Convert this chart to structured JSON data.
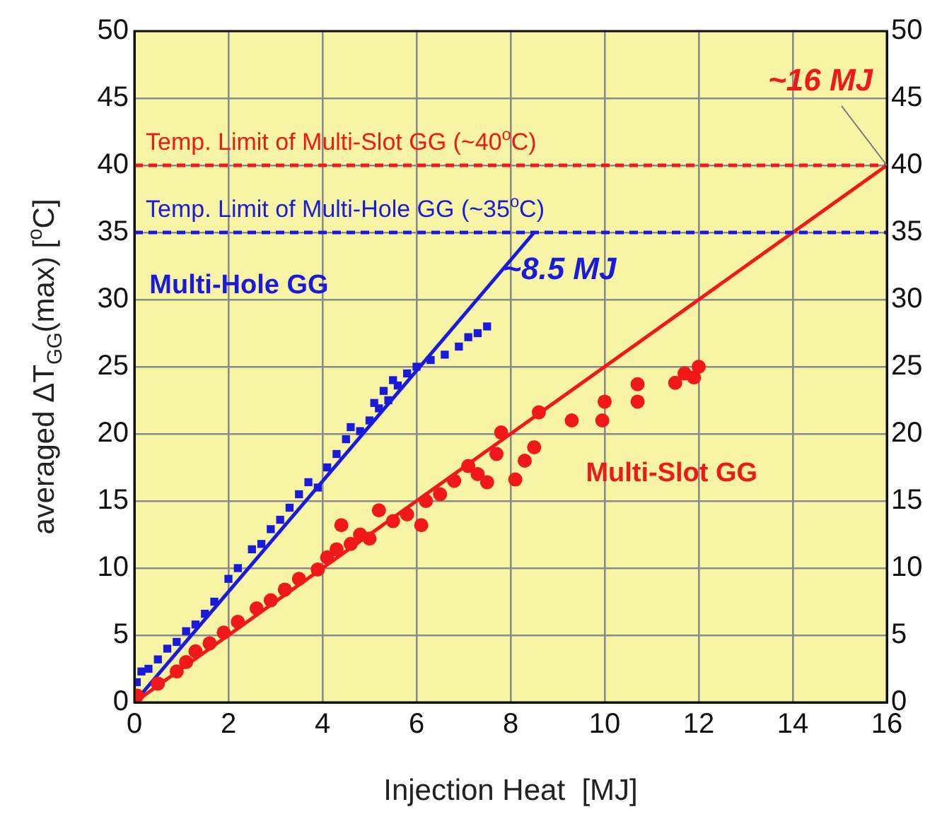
{
  "chart_data": {
    "type": "scatter",
    "xlabel": "Injection Heat  [MJ]",
    "ylabel": "averaged ΔT$_{GG}$(max) [$^{o}$C]",
    "xlim": [
      0,
      16
    ],
    "xticks": [
      0,
      2,
      4,
      6,
      8,
      10,
      12,
      14,
      16
    ],
    "ylim": [
      0,
      50
    ],
    "yticks": [
      0,
      5,
      10,
      15,
      20,
      25,
      30,
      35,
      40,
      45,
      50
    ],
    "y2lim": [
      0,
      50
    ],
    "y2ticks": [
      0,
      5,
      10,
      15,
      20,
      25,
      30,
      35,
      40,
      45,
      50
    ],
    "grid": true,
    "series": [
      {
        "name": "Multi-Hole GG",
        "color": "#1a1adc",
        "marker": "square",
        "x": [
          0.05,
          0.15,
          0.3,
          0.5,
          0.7,
          0.9,
          1.1,
          1.3,
          1.5,
          1.7,
          2.0,
          2.2,
          2.5,
          2.7,
          2.9,
          3.1,
          3.3,
          3.5,
          3.7,
          3.9,
          4.1,
          4.3,
          4.5,
          4.6,
          4.8,
          5.0,
          5.1,
          5.2,
          5.3,
          5.4,
          5.5,
          5.6,
          5.8,
          6.0,
          6.3,
          6.6,
          6.9,
          7.1,
          7.3,
          7.5
        ],
        "values": [
          1.5,
          2.3,
          2.5,
          3.2,
          4.0,
          4.5,
          5.3,
          5.8,
          6.6,
          7.5,
          9.2,
          10.0,
          11.4,
          11.8,
          12.9,
          13.6,
          14.5,
          15.5,
          16.4,
          16.0,
          17.5,
          18.5,
          19.6,
          20.5,
          20.2,
          21.0,
          22.3,
          21.9,
          23.2,
          22.5,
          24.0,
          23.6,
          24.5,
          25.0,
          25.5,
          25.9,
          26.5,
          27.2,
          27.5,
          28.0
        ]
      },
      {
        "name": "Multi-Slot GG",
        "color": "#f01818",
        "marker": "circle",
        "x": [
          0.06,
          0.5,
          0.9,
          1.1,
          1.3,
          1.6,
          1.9,
          2.2,
          2.6,
          2.9,
          3.2,
          3.5,
          3.9,
          4.1,
          4.3,
          4.4,
          4.6,
          4.8,
          5.0,
          5.2,
          5.5,
          5.8,
          6.1,
          6.2,
          6.5,
          6.8,
          7.1,
          7.3,
          7.5,
          7.7,
          7.8,
          8.1,
          8.3,
          8.5,
          8.6,
          9.3,
          9.95,
          10.0,
          10.7,
          10.7,
          11.5,
          11.7,
          11.9,
          12.0
        ],
        "values": [
          0.5,
          1.4,
          2.3,
          3.0,
          3.8,
          4.4,
          5.2,
          6.0,
          7.0,
          7.6,
          8.4,
          9.2,
          9.9,
          10.8,
          11.4,
          13.2,
          11.8,
          12.5,
          12.2,
          14.3,
          13.5,
          14.0,
          13.2,
          15.0,
          15.5,
          16.5,
          17.6,
          17.0,
          16.4,
          18.5,
          20.1,
          16.6,
          18.0,
          19.0,
          21.6,
          21.0,
          21.0,
          22.4,
          22.4,
          23.7,
          23.8,
          24.5,
          24.2,
          25.0
        ]
      },
      {
        "type": "line",
        "color": "#1a1adc",
        "x": [
          0,
          8.5
        ],
        "values": [
          0,
          35
        ]
      },
      {
        "type": "line",
        "color": "#f01818",
        "x": [
          0,
          16
        ],
        "values": [
          0,
          40
        ]
      }
    ],
    "ref_lines": [
      {
        "axis": "y",
        "value": 40,
        "label": "Temp. Limit of Multi-Slot GG (~40$^{o}$C)",
        "color": "#f01818",
        "line_style": "dashed"
      },
      {
        "axis": "y",
        "value": 35,
        "label": "Temp. Limit of Multi-Hole GG (~35$^{o}$C)",
        "color": "#1a1adc",
        "line_style": "dashed"
      }
    ],
    "annotations": [
      {
        "text": "~16 MJ",
        "x": 16,
        "y": 40
      },
      {
        "text": "~8.5 MJ",
        "x": 8.5,
        "y": 35
      }
    ]
  }
}
